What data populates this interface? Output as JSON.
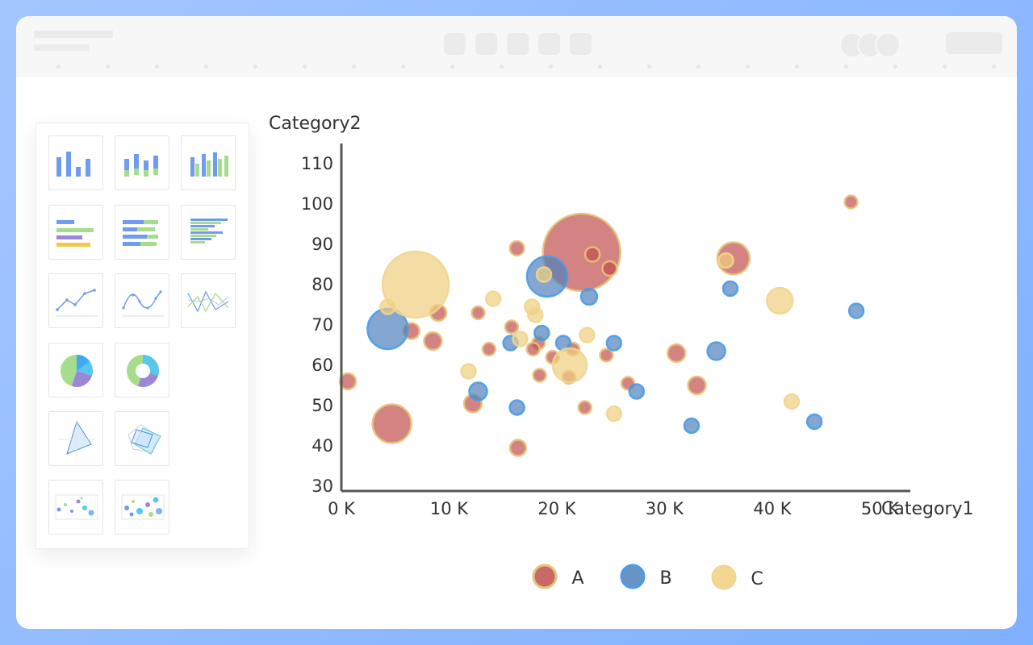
{
  "colors": {
    "A": "#c0504d",
    "B": "#4f81bd",
    "C": "#f0cf7e",
    "A_stroke": "#e8c37a",
    "B_stroke": "#4a9be8",
    "C_stroke": "#f0d690"
  },
  "thumbnails": [
    {
      "icon": "bar-chart-icon"
    },
    {
      "icon": "stacked-bar-chart-icon"
    },
    {
      "icon": "grouped-bar-chart-icon"
    },
    {
      "icon": "horizontal-bar-chart-icon"
    },
    {
      "icon": "stacked-horizontal-bar-chart-icon"
    },
    {
      "icon": "grouped-horizontal-bar-chart-icon"
    },
    {
      "icon": "line-chart-icon"
    },
    {
      "icon": "smooth-line-chart-icon"
    },
    {
      "icon": "multi-line-chart-icon"
    },
    {
      "icon": "pie-chart-icon"
    },
    {
      "icon": "donut-chart-icon"
    },
    {
      "icon": "radar-chart-icon"
    },
    {
      "icon": "multi-radar-chart-icon"
    },
    {
      "icon": "scatter-chart-icon"
    },
    {
      "icon": "bubble-chart-icon"
    }
  ],
  "chart_data": {
    "type": "scatter",
    "xlabel": "Category1",
    "ylabel": "Category2",
    "xlim": [
      0,
      50000
    ],
    "ylim": [
      30,
      115
    ],
    "x_ticks": [
      0,
      10000,
      20000,
      30000,
      40000,
      50000
    ],
    "x_tick_labels": [
      "0 K",
      "10 K",
      "20 K",
      "30 K",
      "40 K",
      "50 K"
    ],
    "y_ticks": [
      30,
      40,
      50,
      60,
      70,
      80,
      90,
      100,
      110
    ],
    "y_tick_labels": [
      "30",
      "40",
      "50",
      "60",
      "70",
      "80",
      "90",
      "100",
      "110"
    ],
    "legend_position": "bottom",
    "series": [
      {
        "name": "A",
        "points": [
          [
            22300,
            88,
            48
          ],
          [
            36400,
            86.5,
            20
          ],
          [
            4700,
            45.5,
            24
          ],
          [
            16300,
            89,
            9
          ],
          [
            23300,
            87.5,
            9
          ],
          [
            24900,
            84,
            9
          ],
          [
            9000,
            73,
            10
          ],
          [
            6500,
            68.5,
            10
          ],
          [
            8500,
            66,
            11
          ],
          [
            600,
            56,
            10
          ],
          [
            12700,
            73,
            8
          ],
          [
            15800,
            69.5,
            8
          ],
          [
            13700,
            64,
            8
          ],
          [
            18300,
            65.5,
            8
          ],
          [
            17800,
            64,
            8
          ],
          [
            19600,
            62,
            8
          ],
          [
            21500,
            64,
            8
          ],
          [
            24600,
            62.5,
            8
          ],
          [
            31100,
            63,
            11
          ],
          [
            33000,
            55,
            11
          ],
          [
            26600,
            55.5,
            8
          ],
          [
            12200,
            50.5,
            11
          ],
          [
            16400,
            39.5,
            10
          ],
          [
            18400,
            57.5,
            8
          ],
          [
            21100,
            57,
            8
          ],
          [
            22600,
            49.5,
            8
          ],
          [
            47300,
            100.5,
            8
          ]
        ]
      },
      {
        "name": "B",
        "points": [
          [
            19100,
            82,
            25
          ],
          [
            4300,
            69,
            25
          ],
          [
            23000,
            77,
            10
          ],
          [
            36100,
            79,
            9
          ],
          [
            47800,
            73.5,
            9
          ],
          [
            15700,
            65.5,
            9
          ],
          [
            18600,
            68,
            9
          ],
          [
            20600,
            65.5,
            9
          ],
          [
            25300,
            65.5,
            9
          ],
          [
            34800,
            63.5,
            11
          ],
          [
            12700,
            53.5,
            11
          ],
          [
            16300,
            49.5,
            9
          ],
          [
            27400,
            53.5,
            9
          ],
          [
            32500,
            45,
            9
          ],
          [
            43900,
            46,
            9
          ]
        ]
      },
      {
        "name": "C",
        "points": [
          [
            6900,
            80,
            41
          ],
          [
            21200,
            60,
            21
          ],
          [
            40700,
            76,
            16
          ],
          [
            35700,
            86,
            9
          ],
          [
            18800,
            82.5,
            9
          ],
          [
            4300,
            74.5,
            9
          ],
          [
            14100,
            76.5,
            9
          ],
          [
            17700,
            74.5,
            9
          ],
          [
            18000,
            72.5,
            9
          ],
          [
            22800,
            67.5,
            9
          ],
          [
            16600,
            66.5,
            9
          ],
          [
            11800,
            58.5,
            9
          ],
          [
            25300,
            48,
            9
          ],
          [
            41800,
            51,
            9
          ]
        ]
      }
    ]
  }
}
